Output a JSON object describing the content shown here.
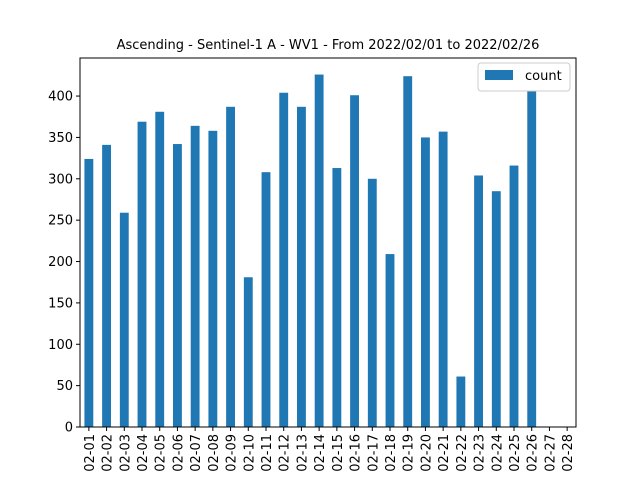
{
  "chart_data": {
    "type": "bar",
    "title": "Ascending - Sentinel-1 A - WV1 - From 2022/02/01 to 2022/02/26",
    "xlabel": "",
    "ylabel": "",
    "categories": [
      "02-01",
      "02-02",
      "02-03",
      "02-04",
      "02-05",
      "02-06",
      "02-07",
      "02-08",
      "02-09",
      "02-10",
      "02-11",
      "02-12",
      "02-13",
      "02-14",
      "02-15",
      "02-16",
      "02-17",
      "02-18",
      "02-19",
      "02-20",
      "02-21",
      "02-22",
      "02-23",
      "02-24",
      "02-25",
      "02-26",
      "02-27",
      "02-28"
    ],
    "series": [
      {
        "name": "count",
        "color": "#1f77b4",
        "values": [
          324,
          341,
          259,
          369,
          381,
          342,
          364,
          358,
          387,
          181,
          308,
          404,
          387,
          426,
          313,
          401,
          300,
          209,
          424,
          350,
          357,
          61,
          304,
          285,
          316,
          410,
          0,
          0
        ]
      }
    ],
    "ylim": [
      0,
      446
    ],
    "yticks": [
      0,
      50,
      100,
      150,
      200,
      250,
      300,
      350,
      400
    ],
    "legend": "top-right",
    "grid": false
  }
}
